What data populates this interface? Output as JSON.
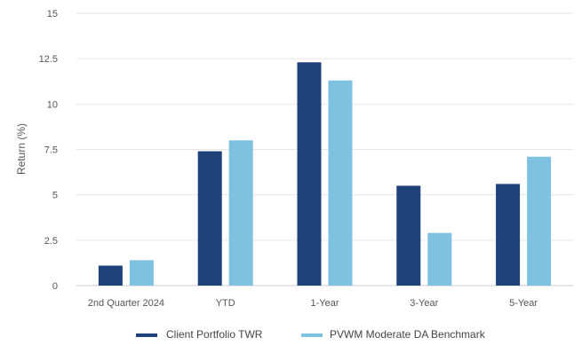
{
  "chart_data": {
    "type": "bar",
    "title": "",
    "xlabel": "",
    "ylabel": "Return (%)",
    "ylim": [
      0,
      15
    ],
    "yticks": [
      {
        "value": 0,
        "label": "0"
      },
      {
        "value": 2.5,
        "label": "2.5"
      },
      {
        "value": 5,
        "label": "5"
      },
      {
        "value": 7.5,
        "label": "7.5"
      },
      {
        "value": 10,
        "label": "10"
      },
      {
        "value": 12.5,
        "label": "12.5"
      },
      {
        "value": 15,
        "label": "15"
      }
    ],
    "grid": true,
    "legend_position": "bottom-center",
    "categories": [
      "2nd Quarter 2024",
      "YTD",
      "1-Year",
      "3-Year",
      "5-Year"
    ],
    "series": [
      {
        "name": "Client Portfolio TWR",
        "color": "#1f4179",
        "values": [
          1.1,
          7.4,
          12.3,
          5.5,
          5.6
        ]
      },
      {
        "name": "PVWM Moderate DA Benchmark",
        "color": "#7ec1e0",
        "values": [
          1.4,
          8.0,
          11.3,
          2.9,
          7.1
        ]
      }
    ]
  }
}
